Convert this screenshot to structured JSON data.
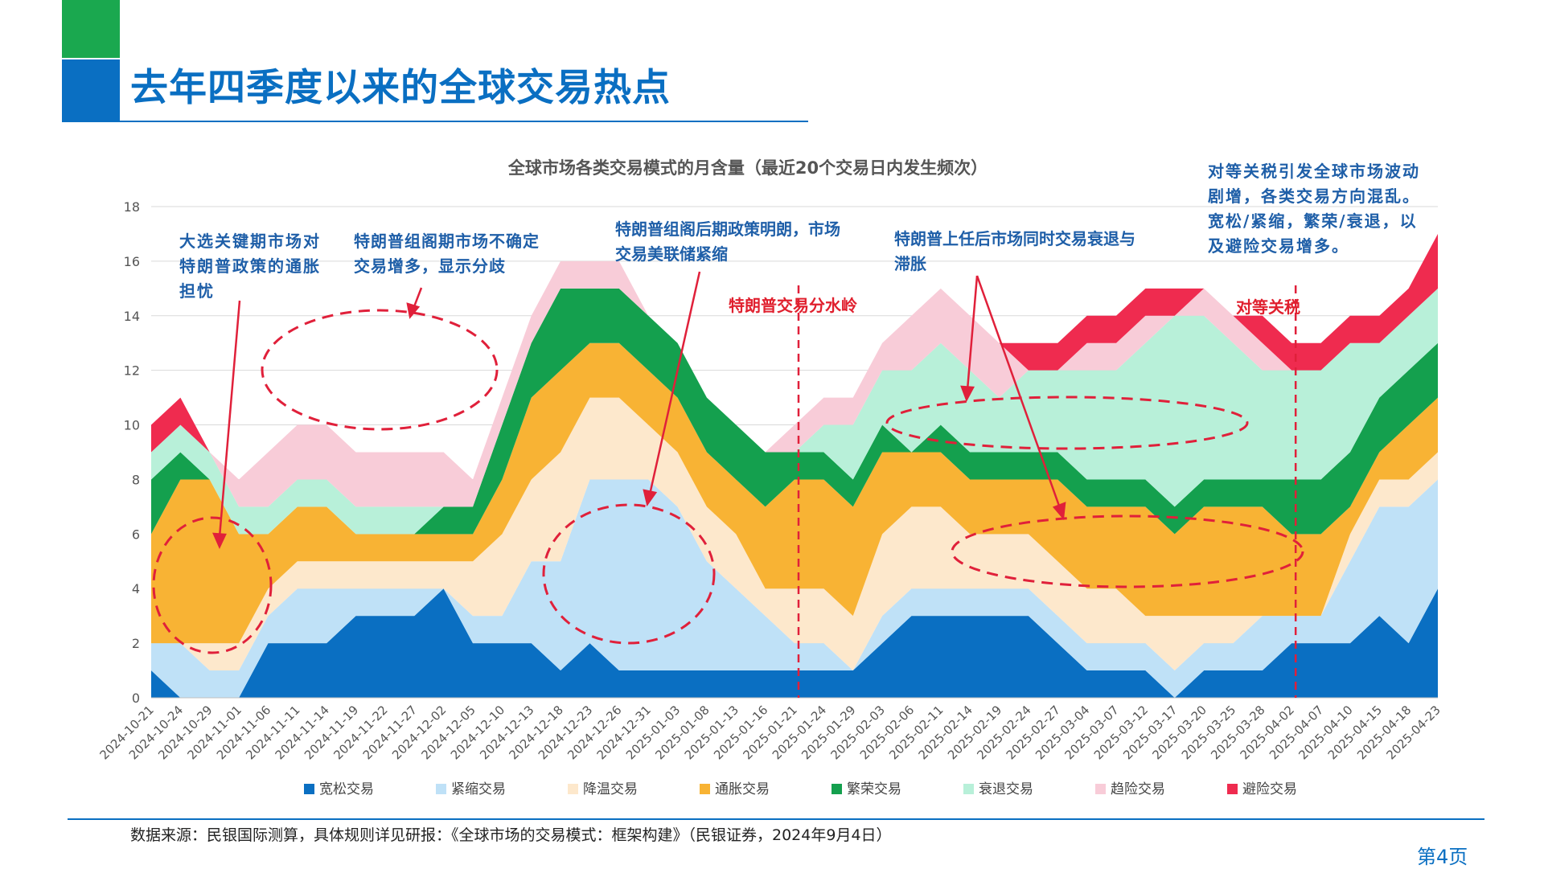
{
  "page": {
    "title": "去年四季度以来的全球交易热点",
    "source": "数据来源：民银国际测算，具体规则详见研报：《全球市场的交易模式：框架构建》（民银证券，2024年9月4日）",
    "page_number": "第4页"
  },
  "annotations": {
    "a1": "大选关键期市场对特朗普政策的通胀担忧",
    "a2": "特朗普组阁期市场不确定交易增多，显示分歧",
    "a3": "特朗普组阁后期政策明朗，市场交易美联储紧缩",
    "a4": "特朗普上任后市场同时交易衰退与滞胀",
    "a5": "对等关税引发全球市场波动剧增，各类交易方向混乱。宽松/紧缩，繁荣/衰退，以及避险交易增多。",
    "marker1": "特朗普交易分水岭",
    "marker2": "对等关税"
  },
  "chart_data": {
    "type": "area",
    "title": "全球市场各类交易模式的月含量（最近20个交易日内发生频次）",
    "ylim": [
      0,
      18
    ],
    "yticks": [
      "0",
      "2",
      "4",
      "6",
      "8",
      "10",
      "12",
      "14",
      "16",
      "18"
    ],
    "grid": true,
    "legend_position": "bottom",
    "categories": [
      "2024-10-21",
      "2024-10-24",
      "2024-10-29",
      "2024-11-01",
      "2024-11-06",
      "2024-11-11",
      "2024-11-14",
      "2024-11-19",
      "2024-11-22",
      "2024-11-27",
      "2024-12-02",
      "2024-12-05",
      "2024-12-10",
      "2024-12-13",
      "2024-12-18",
      "2024-12-23",
      "2024-12-26",
      "2024-12-31",
      "2025-01-03",
      "2025-01-08",
      "2025-01-13",
      "2025-01-16",
      "2025-01-21",
      "2025-01-24",
      "2025-01-29",
      "2025-02-03",
      "2025-02-06",
      "2025-02-11",
      "2025-02-14",
      "2025-02-19",
      "2025-02-24",
      "2025-02-27",
      "2025-03-04",
      "2025-03-07",
      "2025-03-12",
      "2025-03-17",
      "2025-03-20",
      "2025-03-25",
      "2025-03-28",
      "2025-04-02",
      "2025-04-07",
      "2025-04-10",
      "2025-04-15",
      "2025-04-18",
      "2025-04-23"
    ],
    "series": [
      {
        "name": "宽松交易",
        "color": "#0a6fc2",
        "values": [
          1,
          0,
          0,
          0,
          2,
          2,
          2,
          3,
          3,
          3,
          4,
          2,
          2,
          2,
          1,
          2,
          1,
          1,
          1,
          1,
          1,
          1,
          1,
          1,
          1,
          2,
          3,
          3,
          3,
          3,
          3,
          2,
          1,
          1,
          1,
          0,
          1,
          1,
          1,
          2,
          2,
          2,
          3,
          2,
          4
        ]
      },
      {
        "name": "紧缩交易",
        "color": "#bfe1f7",
        "values": [
          1,
          2,
          1,
          1,
          1,
          2,
          2,
          1,
          1,
          1,
          0,
          1,
          1,
          3,
          4,
          6,
          7,
          7,
          6,
          4,
          3,
          2,
          1,
          1,
          0,
          1,
          1,
          1,
          1,
          1,
          1,
          1,
          1,
          1,
          1,
          1,
          1,
          1,
          2,
          1,
          1,
          3,
          4,
          5,
          4
        ]
      },
      {
        "name": "降温交易",
        "color": "#fde8cc",
        "values": [
          0,
          0,
          1,
          1,
          1,
          1,
          1,
          1,
          1,
          1,
          1,
          2,
          3,
          3,
          4,
          3,
          3,
          2,
          2,
          2,
          2,
          1,
          2,
          2,
          2,
          3,
          3,
          3,
          2,
          2,
          2,
          2,
          2,
          2,
          1,
          2,
          1,
          1,
          0,
          0,
          0,
          1,
          1,
          1,
          1
        ]
      },
      {
        "name": "通胀交易",
        "color": "#f8b334",
        "values": [
          4,
          6,
          6,
          4,
          2,
          2,
          2,
          1,
          1,
          1,
          1,
          1,
          2,
          3,
          3,
          2,
          2,
          2,
          2,
          2,
          2,
          3,
          4,
          4,
          4,
          3,
          2,
          2,
          2,
          2,
          2,
          3,
          3,
          3,
          4,
          3,
          4,
          4,
          4,
          3,
          3,
          1,
          1,
          2,
          2
        ]
      },
      {
        "name": "繁荣交易",
        "color": "#14a04e",
        "values": [
          2,
          1,
          0,
          0,
          0,
          0,
          0,
          0,
          0,
          0,
          1,
          1,
          2,
          2,
          3,
          2,
          2,
          2,
          2,
          2,
          2,
          2,
          1,
          1,
          1,
          1,
          0,
          1,
          1,
          1,
          1,
          1,
          1,
          1,
          1,
          1,
          1,
          1,
          1,
          2,
          2,
          2,
          2,
          2,
          2
        ]
      },
      {
        "name": "衰退交易",
        "color": "#b8f0d9",
        "values": [
          1,
          1,
          1,
          1,
          1,
          1,
          1,
          1,
          1,
          1,
          0,
          0,
          0,
          0,
          0,
          0,
          0,
          0,
          0,
          0,
          0,
          0,
          0,
          1,
          2,
          2,
          3,
          3,
          3,
          2,
          3,
          3,
          4,
          4,
          5,
          7,
          6,
          5,
          4,
          4,
          4,
          4,
          2,
          2,
          2
        ]
      },
      {
        "name": "趋险交易",
        "color": "#f8ccd8",
        "values": [
          0,
          0,
          0,
          1,
          2,
          2,
          2,
          2,
          2,
          2,
          2,
          1,
          1,
          1,
          1,
          1,
          1,
          0,
          0,
          0,
          0,
          0,
          1,
          1,
          1,
          1,
          2,
          2,
          2,
          2,
          0,
          0,
          1,
          1,
          1,
          0,
          1,
          1,
          1,
          0,
          0,
          0,
          0,
          0,
          0
        ]
      },
      {
        "name": "避险交易",
        "color": "#ef2b4f",
        "values": [
          1,
          1,
          0,
          0,
          0,
          0,
          0,
          0,
          0,
          0,
          0,
          0,
          0,
          0,
          0,
          0,
          0,
          0,
          0,
          0,
          0,
          0,
          0,
          0,
          0,
          0,
          0,
          0,
          0,
          0,
          1,
          1,
          1,
          1,
          1,
          1,
          0,
          0,
          1,
          1,
          1,
          1,
          1,
          1,
          2
        ]
      }
    ],
    "markers": [
      {
        "label": "特朗普交易分水岭",
        "x": "2025-01-21"
      },
      {
        "label": "对等关税",
        "x": "2025-04-02"
      }
    ]
  }
}
